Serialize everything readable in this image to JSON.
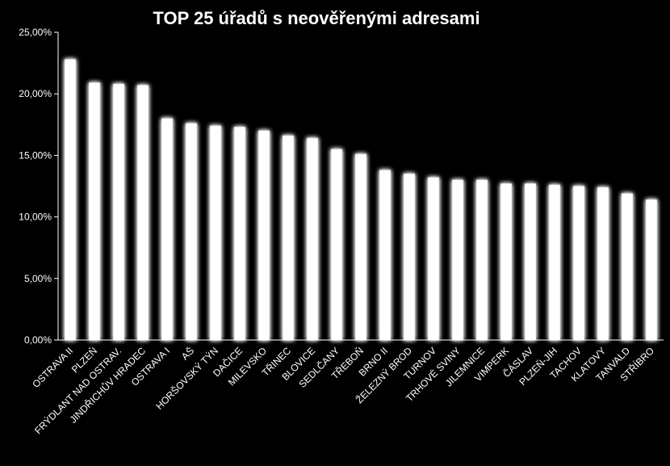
{
  "chart_data": {
    "type": "bar",
    "title": "TOP 25 úřadů s neověřenými adresami",
    "xlabel": "",
    "ylabel": "",
    "ylim": [
      0,
      25
    ],
    "grid": false,
    "legend": "none",
    "y_ticks": [
      "0,00%",
      "5,00%",
      "10,00%",
      "15,00%",
      "20,00%",
      "25,00%"
    ],
    "categories": [
      "OSTRAVA II",
      "PLZEŇ",
      "FRÝDLANT NAD OSTRAV.",
      "JINDŘICHŮV HRADEC",
      "OSTRAVA I",
      "AŠ",
      "HORŠOVSKÝ TÝN",
      "DAČICE",
      "MILEVSKO",
      "TŘINEC",
      "BLOVICE",
      "SEDLČANY",
      "TŘEBOŇ",
      "BRNO II",
      "ŽELEZNÝ BROD",
      "TURNOV",
      "TRHOVÉ SVINY",
      "JILEMNICE",
      "VIMPERK",
      "ČÁSLAV",
      "PLZEŇ-JIH",
      "TACHOV",
      "KLATOVY",
      "TANVALD",
      "STŘÍBRO"
    ],
    "values": [
      22.8,
      20.9,
      20.8,
      20.7,
      18.0,
      17.6,
      17.4,
      17.3,
      17.0,
      16.6,
      16.4,
      15.5,
      15.1,
      13.8,
      13.5,
      13.2,
      13.0,
      13.0,
      12.7,
      12.7,
      12.6,
      12.5,
      12.4,
      11.9,
      11.4
    ],
    "colors": {
      "bar": "#ffffff",
      "axis": "#ffffff",
      "background": "#000000",
      "text": "#ffffff"
    }
  }
}
